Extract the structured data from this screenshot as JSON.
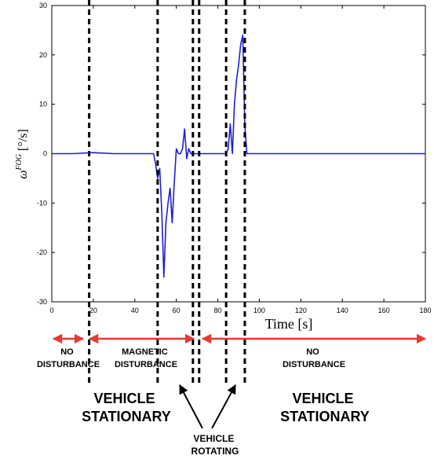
{
  "chart_data": {
    "type": "line",
    "xlabel": "Time [s]",
    "ylabel": "ω^FOG [°/s]",
    "ylabel_main": "ω",
    "ylabel_sup": "FOG",
    "ylabel_unit": "[°/s]",
    "xlim": [
      0,
      180
    ],
    "ylim": [
      -30,
      30
    ],
    "xticks": [
      "0",
      "20",
      "40",
      "60",
      "80",
      "100",
      "120",
      "140",
      "160",
      "180"
    ],
    "yticks": [
      "30",
      "20",
      "10",
      "0",
      "-10",
      "-20",
      "-30"
    ],
    "grid": false,
    "line_color": "#1f1fd6",
    "series": [
      {
        "x": [
          0,
          10,
          20,
          30,
          40,
          49,
          50,
          51,
          52,
          53,
          54,
          55,
          56,
          57,
          58,
          59,
          60,
          61,
          62,
          63,
          64,
          65,
          66,
          67,
          68,
          70,
          75,
          80,
          84,
          85,
          86,
          87,
          88,
          89,
          90,
          91,
          92,
          93,
          94,
          95,
          100,
          120,
          140,
          160,
          180
        ],
        "y": [
          0,
          0,
          0.2,
          0,
          0,
          0,
          -2,
          -5,
          -3,
          -12,
          -25,
          -14,
          -10,
          -7,
          -14,
          -6,
          1,
          0,
          0,
          1,
          5,
          -1,
          1,
          0,
          0,
          0,
          0,
          0,
          0,
          1,
          6,
          0,
          10,
          15,
          18,
          22,
          24,
          6,
          0,
          0,
          0,
          0,
          0,
          0,
          0
        ]
      }
    ],
    "dashed_lines_x": [
      18,
      51,
      68,
      71,
      84,
      93
    ],
    "arrow_color": "#e53935",
    "annotations": {
      "no_disturbance_left": [
        "NO",
        "DISTURBANCE"
      ],
      "magnetic_disturbance": [
        "MAGNETIC",
        "DISTURBANCE"
      ],
      "no_disturbance_right": [
        "NO",
        "DISTURBANCE"
      ],
      "vehicle_stationary_left": [
        "VEHICLE",
        "STATIONARY"
      ],
      "vehicle_stationary_right": [
        "VEHICLE",
        "STATIONARY"
      ],
      "vehicle_rotating": [
        "VEHICLE",
        "ROTATING"
      ]
    }
  }
}
